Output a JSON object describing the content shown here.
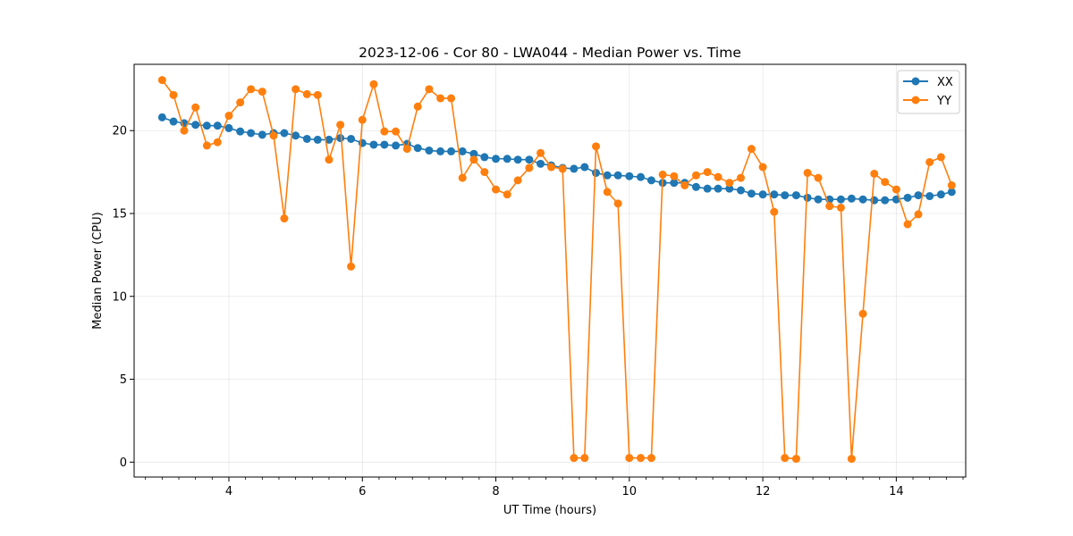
{
  "chart_data": {
    "type": "line",
    "title": "2023-12-06 - Cor 80 - LWA044 - Median Power vs. Time",
    "xlabel": "UT Time (hours)",
    "ylabel": "Median Power (CPU)",
    "xlim": [
      2.58,
      15.04
    ],
    "ylim": [
      -0.9,
      24.0
    ],
    "xticks": [
      4,
      6,
      8,
      10,
      12,
      14
    ],
    "yticks": [
      0,
      5,
      10,
      15,
      20
    ],
    "xtick_labels": [
      "4",
      "6",
      "8",
      "10",
      "12",
      "14"
    ],
    "ytick_labels": [
      "0",
      "5",
      "10",
      "15",
      "20"
    ],
    "grid": true,
    "legend_position": "top-right",
    "x": [
      3.0,
      3.17,
      3.33,
      3.5,
      3.67,
      3.83,
      4.0,
      4.17,
      4.33,
      4.5,
      4.67,
      4.83,
      5.0,
      5.17,
      5.33,
      5.5,
      5.67,
      5.83,
      6.0,
      6.17,
      6.33,
      6.5,
      6.67,
      6.83,
      7.0,
      7.17,
      7.33,
      7.5,
      7.67,
      7.83,
      8.0,
      8.17,
      8.33,
      8.5,
      8.67,
      8.83,
      9.0,
      9.17,
      9.33,
      9.5,
      9.67,
      9.83,
      10.0,
      10.17,
      10.33,
      10.5,
      10.67,
      10.83,
      11.0,
      11.17,
      11.33,
      11.5,
      11.67,
      11.83,
      12.0,
      12.17,
      12.33,
      12.5,
      12.67,
      12.83,
      13.0,
      13.17,
      13.33,
      13.5,
      13.67,
      13.83,
      14.0,
      14.17,
      14.33,
      14.5,
      14.67,
      14.83
    ],
    "series": [
      {
        "name": "XX",
        "color": "#1f77b4",
        "values": [
          20.8,
          20.55,
          20.45,
          20.35,
          20.3,
          20.3,
          20.15,
          19.95,
          19.85,
          19.75,
          19.85,
          19.85,
          19.7,
          19.5,
          19.45,
          19.45,
          19.55,
          19.5,
          19.25,
          19.15,
          19.15,
          19.1,
          19.2,
          18.95,
          18.8,
          18.75,
          18.75,
          18.75,
          18.6,
          18.4,
          18.3,
          18.3,
          18.25,
          18.25,
          18.0,
          17.9,
          17.75,
          17.7,
          17.8,
          17.45,
          17.3,
          17.3,
          17.25,
          17.2,
          17.0,
          16.85,
          16.85,
          16.85,
          16.6,
          16.5,
          16.5,
          16.5,
          16.4,
          16.2,
          16.15,
          16.15,
          16.1,
          16.1,
          15.95,
          15.85,
          15.85,
          15.85,
          15.9,
          15.85,
          15.8,
          15.8,
          15.85,
          15.95,
          16.1,
          16.05,
          16.15,
          16.3
        ]
      },
      {
        "name": "YY",
        "color": "#ff7f0e",
        "values": [
          23.05,
          22.15,
          20.0,
          21.4,
          19.1,
          19.3,
          20.9,
          21.7,
          22.5,
          22.35,
          19.7,
          14.7,
          22.5,
          22.2,
          22.15,
          18.25,
          20.35,
          11.8,
          20.65,
          22.8,
          19.95,
          19.95,
          18.9,
          21.45,
          22.5,
          21.95,
          21.95,
          17.15,
          18.25,
          17.5,
          16.45,
          16.15,
          17.0,
          17.75,
          18.65,
          17.8,
          17.7,
          0.25,
          0.25,
          19.05,
          16.3,
          15.6,
          0.25,
          0.25,
          0.25,
          17.35,
          17.25,
          16.7,
          17.3,
          17.5,
          17.2,
          16.85,
          17.15,
          18.9,
          17.8,
          15.1,
          0.25,
          0.2,
          17.45,
          17.15,
          15.45,
          15.35,
          0.2,
          8.95,
          17.4,
          16.9,
          16.45,
          14.35,
          14.95,
          18.1,
          18.4,
          16.7
        ]
      }
    ]
  }
}
